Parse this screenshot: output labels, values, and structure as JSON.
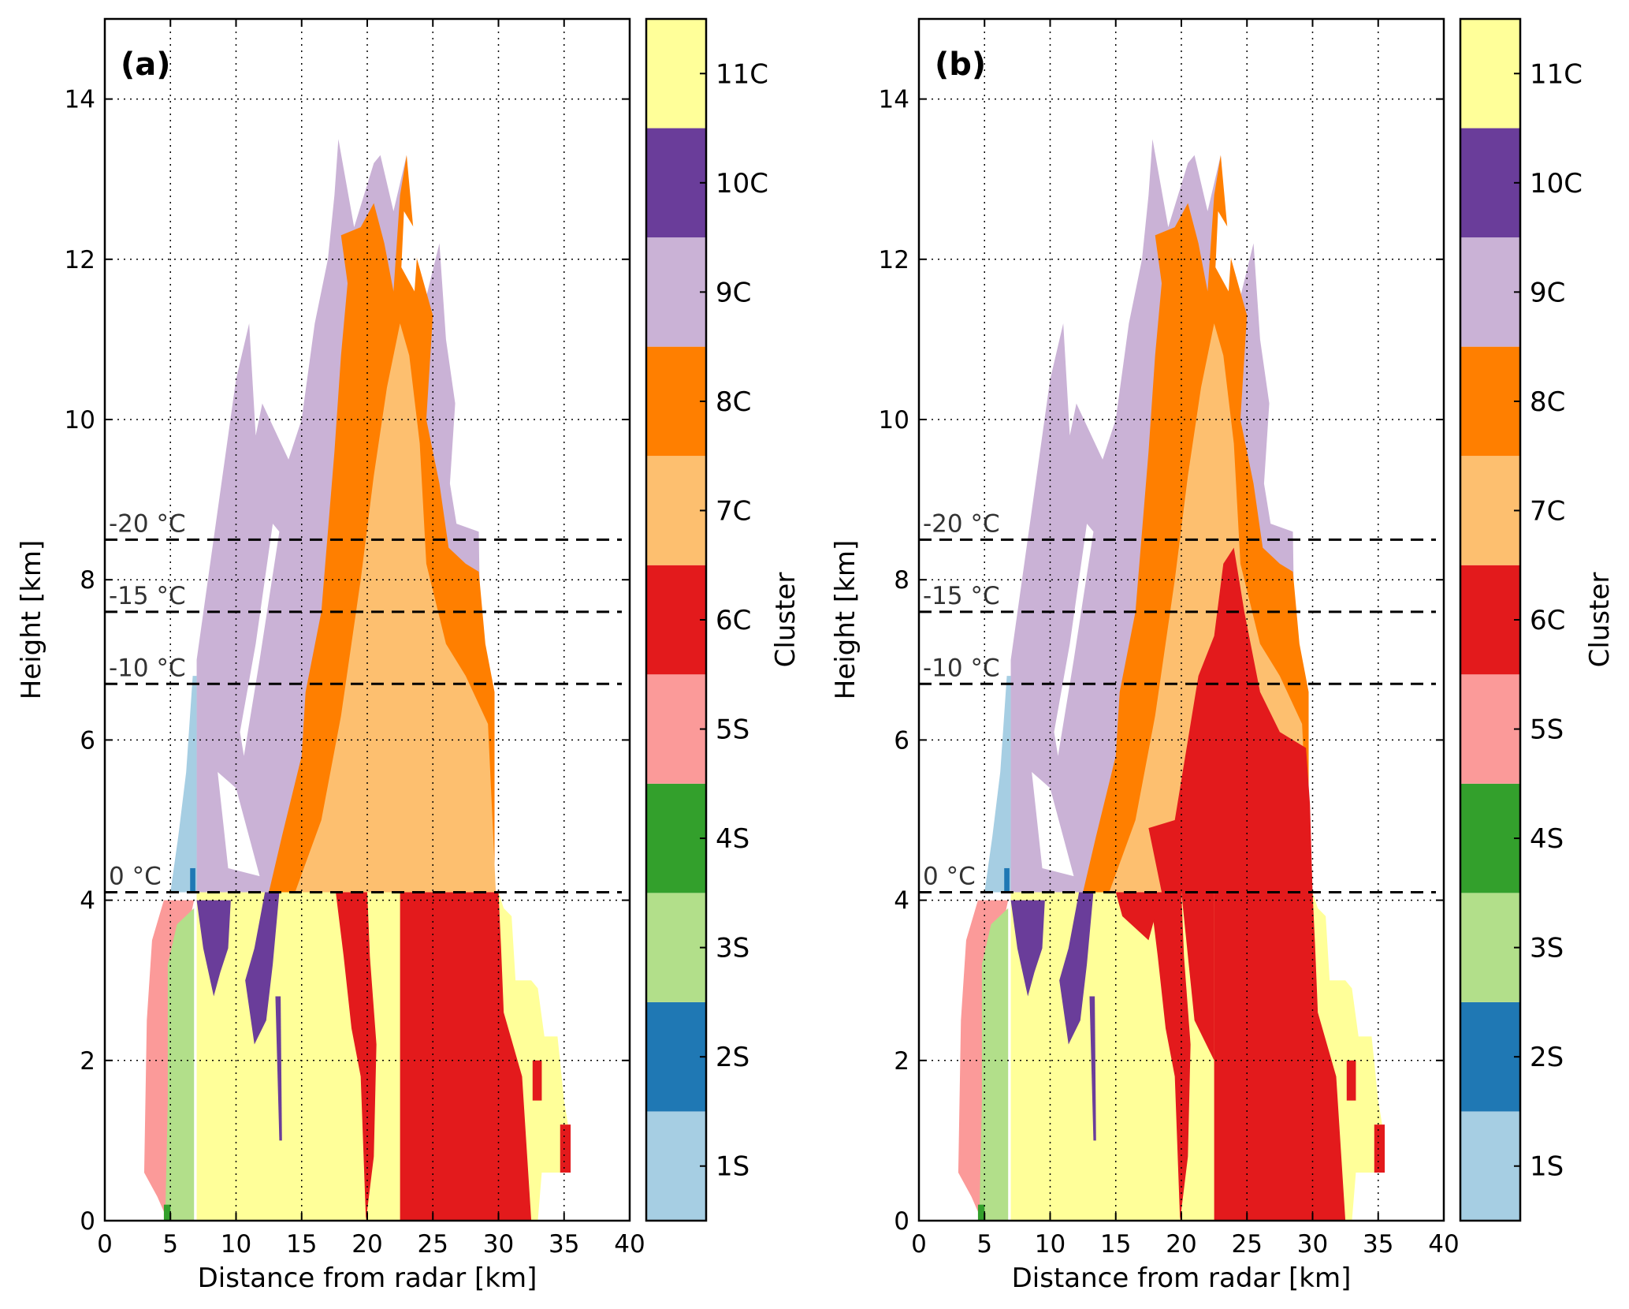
{
  "chart_data": {
    "type": "heatmap",
    "xlabel": "Distance from radar [km]",
    "ylabel": "Height [km]",
    "xlim": [
      0,
      40
    ],
    "ylim": [
      0,
      15
    ],
    "xticks": [
      0,
      5,
      10,
      15,
      20,
      25,
      30,
      35,
      40
    ],
    "yticks": [
      0,
      2,
      4,
      6,
      8,
      10,
      12,
      14
    ],
    "grid": true,
    "colorbar": {
      "label": "Cluster",
      "categories": [
        {
          "name": "1S",
          "color": "#a6cee3"
        },
        {
          "name": "2S",
          "color": "#1f78b4"
        },
        {
          "name": "3S",
          "color": "#b2df8a"
        },
        {
          "name": "4S",
          "color": "#33a02c"
        },
        {
          "name": "5S",
          "color": "#fb9a99"
        },
        {
          "name": "6C",
          "color": "#e31a1c"
        },
        {
          "name": "7C",
          "color": "#fdbf6f"
        },
        {
          "name": "8C",
          "color": "#ff7f00"
        },
        {
          "name": "9C",
          "color": "#cab2d6"
        },
        {
          "name": "10C",
          "color": "#6a3d9a"
        },
        {
          "name": "11C",
          "color": "#ffff99"
        }
      ]
    },
    "isotherms": [
      {
        "label": "-20 °C",
        "height_km": 8.5
      },
      {
        "label": "-15 °C",
        "height_km": 7.6
      },
      {
        "label": "-10 °C",
        "height_km": 6.7
      },
      {
        "label": "0 °C",
        "height_km": 4.1
      }
    ],
    "base_regions": [
      {
        "cluster": "9C",
        "points": [
          [
            7,
            4.1
          ],
          [
            7,
            7
          ],
          [
            10,
            10.5
          ],
          [
            11,
            11.2
          ],
          [
            11.5,
            9.8
          ],
          [
            12,
            10.2
          ],
          [
            14,
            9.5
          ],
          [
            15,
            10
          ],
          [
            16,
            11.2
          ],
          [
            17,
            12
          ],
          [
            17.5,
            12.8
          ],
          [
            17.8,
            13.5
          ],
          [
            19,
            12.4
          ],
          [
            20.5,
            13.2
          ],
          [
            21,
            13.3
          ],
          [
            22,
            12.6
          ],
          [
            23,
            13.3
          ],
          [
            23.5,
            12.2
          ],
          [
            24,
            11.2
          ],
          [
            25.5,
            12.2
          ],
          [
            26,
            11
          ],
          [
            26.7,
            10.2
          ],
          [
            26.3,
            9.2
          ],
          [
            26.8,
            8.7
          ],
          [
            28.5,
            8.6
          ],
          [
            28.6,
            7.5
          ],
          [
            29,
            6.5
          ],
          [
            29,
            5
          ],
          [
            15,
            4.1
          ]
        ]
      },
      {
        "cluster": "8C",
        "points": [
          [
            12.5,
            4.1
          ],
          [
            13.5,
            4.8
          ],
          [
            15,
            5.8
          ],
          [
            15.3,
            6.6
          ],
          [
            16.5,
            7.6
          ],
          [
            17.5,
            9.6
          ],
          [
            18,
            10.8
          ],
          [
            18.5,
            11.7
          ],
          [
            18,
            12.3
          ],
          [
            19.5,
            12.4
          ],
          [
            20.5,
            12.7
          ],
          [
            21.3,
            12.2
          ],
          [
            22,
            11.6
          ],
          [
            22.5,
            12.8
          ],
          [
            23,
            13.3
          ],
          [
            23.5,
            12.4
          ],
          [
            23.8,
            12
          ],
          [
            25,
            11.3
          ],
          [
            24.5,
            10
          ],
          [
            25.5,
            9.2
          ],
          [
            26.2,
            8.4
          ],
          [
            27.5,
            8.2
          ],
          [
            28.5,
            8.1
          ],
          [
            29,
            7.2
          ],
          [
            29.7,
            6.6
          ],
          [
            29.7,
            4.1
          ]
        ]
      },
      {
        "cluster": "7C",
        "points": [
          [
            14.5,
            4.1
          ],
          [
            16.5,
            5
          ],
          [
            18,
            6.3
          ],
          [
            19.5,
            8
          ],
          [
            20.5,
            9.3
          ],
          [
            21.5,
            10.4
          ],
          [
            22.5,
            11.2
          ],
          [
            23.2,
            10.8
          ],
          [
            24,
            9.7
          ],
          [
            24.5,
            8.2
          ],
          [
            26,
            7.2
          ],
          [
            27.5,
            6.8
          ],
          [
            29.2,
            6.2
          ],
          [
            29.8,
            4.1
          ]
        ]
      },
      {
        "cluster": "white",
        "points": [
          [
            10.3,
            6.1
          ],
          [
            11.5,
            7.2
          ],
          [
            12.8,
            8.7
          ],
          [
            13.3,
            8.6
          ],
          [
            11.8,
            7
          ],
          [
            10.6,
            5.8
          ]
        ]
      },
      {
        "cluster": "white",
        "points": [
          [
            13,
            10.6
          ],
          [
            14,
            11
          ],
          [
            15,
            10.3
          ],
          [
            14,
            9.8
          ]
        ]
      },
      {
        "cluster": "white",
        "points": [
          [
            8.6,
            5.6
          ],
          [
            9.4,
            4.4
          ],
          [
            11.8,
            4.3
          ],
          [
            10,
            5.4
          ]
        ]
      },
      {
        "cluster": "white",
        "points": [
          [
            22.8,
            12.6
          ],
          [
            23.9,
            12.3
          ],
          [
            23.6,
            11.6
          ],
          [
            22.6,
            11.9
          ]
        ]
      },
      {
        "cluster": "11C",
        "points": [
          [
            7,
            0
          ],
          [
            7,
            4.1
          ],
          [
            30,
            4.1
          ],
          [
            30.4,
            3.9
          ],
          [
            31,
            3.8
          ],
          [
            31.3,
            3.0
          ],
          [
            32.5,
            3.0
          ],
          [
            33,
            2.9
          ],
          [
            33.5,
            2.3
          ],
          [
            34.5,
            2.3
          ],
          [
            35,
            1.5
          ],
          [
            35.3,
            1.2
          ],
          [
            35.5,
            0.6
          ],
          [
            33.3,
            0.6
          ],
          [
            33,
            0
          ]
        ]
      },
      {
        "cluster": "6C",
        "points": [
          [
            22.5,
            0
          ],
          [
            22.5,
            4.1
          ],
          [
            30,
            4.1
          ],
          [
            30.2,
            3.4
          ],
          [
            30.4,
            2.6
          ],
          [
            31.8,
            1.8
          ],
          [
            32.5,
            0
          ]
        ]
      },
      {
        "cluster": "6C",
        "points": [
          [
            17.6,
            4.1
          ],
          [
            20,
            4.1
          ],
          [
            20.2,
            3.3
          ],
          [
            20.7,
            2.2
          ],
          [
            20.5,
            0.8
          ],
          [
            19.9,
            0
          ],
          [
            19.5,
            1.8
          ],
          [
            18.8,
            2.4
          ],
          [
            18.2,
            3.3
          ]
        ]
      },
      {
        "cluster": "6C",
        "points": [
          [
            34.7,
            1.2
          ],
          [
            35.5,
            1.2
          ],
          [
            35.5,
            0.6
          ],
          [
            34.7,
            0.6
          ]
        ]
      },
      {
        "cluster": "6C",
        "points": [
          [
            32.6,
            2.0
          ],
          [
            33.3,
            2.0
          ],
          [
            33.3,
            1.5
          ],
          [
            32.6,
            1.5
          ]
        ]
      },
      {
        "cluster": "5S",
        "points": [
          [
            3,
            0.6
          ],
          [
            3.2,
            2.5
          ],
          [
            3.6,
            3.5
          ],
          [
            4.5,
            4.0
          ],
          [
            6.8,
            4.0
          ],
          [
            5.5,
            3.0
          ],
          [
            5.2,
            0.5
          ],
          [
            4.8,
            0
          ],
          [
            4,
            0.3
          ]
        ]
      },
      {
        "cluster": "3S",
        "points": [
          [
            4.6,
            0
          ],
          [
            4.8,
            1.5
          ],
          [
            4.8,
            3.2
          ],
          [
            5.5,
            3.7
          ],
          [
            6.8,
            3.9
          ],
          [
            6.8,
            0
          ]
        ]
      },
      {
        "cluster": "4S",
        "points": [
          [
            4.5,
            0
          ],
          [
            5,
            0
          ],
          [
            5,
            0.2
          ],
          [
            4.5,
            0.2
          ]
        ]
      },
      {
        "cluster": "10C",
        "points": [
          [
            7,
            4.0
          ],
          [
            9.6,
            4.0
          ],
          [
            9.4,
            3.4
          ],
          [
            8.8,
            3.1
          ],
          [
            8.3,
            2.8
          ],
          [
            7.5,
            3.4
          ]
        ]
      },
      {
        "cluster": "10C",
        "points": [
          [
            12.2,
            4.1
          ],
          [
            13.3,
            4.1
          ],
          [
            12.8,
            3.2
          ],
          [
            12.3,
            2.5
          ],
          [
            11.4,
            2.2
          ],
          [
            10.7,
            3.0
          ],
          [
            11.4,
            3.4
          ]
        ]
      },
      {
        "cluster": "10C",
        "points": [
          [
            13.0,
            2.8
          ],
          [
            13.4,
            2.8
          ],
          [
            13.5,
            1.0
          ],
          [
            13.3,
            1.0
          ]
        ]
      },
      {
        "cluster": "1S",
        "points": [
          [
            5,
            4.1
          ],
          [
            7,
            4.1
          ],
          [
            7,
            6.8
          ],
          [
            6.7,
            6.8
          ],
          [
            6.2,
            5.6
          ],
          [
            5.6,
            4.8
          ]
        ]
      },
      {
        "cluster": "2S",
        "points": [
          [
            6.5,
            4.1
          ],
          [
            6.9,
            4.1
          ],
          [
            6.9,
            4.4
          ],
          [
            6.5,
            4.4
          ]
        ]
      }
    ],
    "panels": [
      {
        "label": "(a)",
        "extra_regions": []
      },
      {
        "label": "(b)",
        "extra_regions": [
          {
            "cluster": "6C",
            "points": [
              [
                15,
                4.1
              ],
              [
                15.5,
                3.8
              ],
              [
                17.5,
                3.5
              ],
              [
                18.5,
                4.1
              ],
              [
                17.5,
                4.9
              ],
              [
                19.5,
                5
              ],
              [
                20.5,
                6
              ],
              [
                21.3,
                6.8
              ],
              [
                22.5,
                7.3
              ],
              [
                23.2,
                8.2
              ],
              [
                24,
                8.4
              ],
              [
                24.8,
                7.6
              ],
              [
                26,
                6.6
              ],
              [
                27.5,
                6.1
              ],
              [
                29.5,
                5.9
              ],
              [
                29.8,
                5.2
              ],
              [
                30,
                4.1
              ]
            ]
          },
          {
            "cluster": "6C",
            "points": [
              [
                18.5,
                4.1
              ],
              [
                22.5,
                4.1
              ],
              [
                22.5,
                2.0
              ],
              [
                21,
                2.5
              ],
              [
                20,
                4.1
              ]
            ]
          }
        ]
      }
    ]
  }
}
